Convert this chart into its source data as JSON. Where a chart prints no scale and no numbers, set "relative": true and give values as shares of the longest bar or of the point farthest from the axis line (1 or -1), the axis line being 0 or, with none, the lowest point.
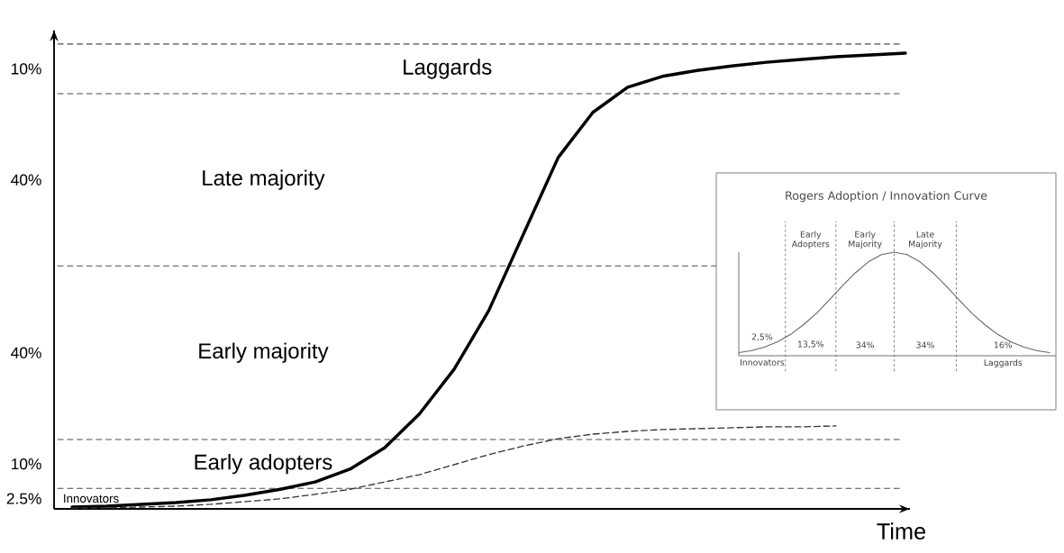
{
  "chart_data": [
    {
      "type": "line",
      "xlabel": "Time",
      "relative": true,
      "tick_labels": false,
      "categories": [
        null,
        null,
        null,
        null,
        null,
        null,
        null,
        null,
        null,
        null,
        null,
        null,
        null,
        null,
        null,
        null,
        null,
        null,
        null,
        null,
        null,
        null,
        null,
        null,
        null
      ],
      "series": [
        {
          "color": "#000000",
          "line_style": "solid",
          "values": [
            0.004,
            0.006,
            0.01,
            0.014,
            0.02,
            0.03,
            0.043,
            0.059,
            0.087,
            0.134,
            0.208,
            0.306,
            0.435,
            0.603,
            0.771,
            0.87,
            0.925,
            0.949,
            0.962,
            0.972,
            0.98,
            0.986,
            0.992,
            0.996,
            1
          ]
        },
        {
          "color": "#333333",
          "line_style": "dashed",
          "values": [
            0.002,
            0.002,
            0.004,
            0.006,
            0.01,
            0.016,
            0.022,
            0.032,
            0.043,
            0.059,
            0.075,
            0.097,
            0.119,
            0.138,
            0.154,
            0.164,
            0.17,
            0.174,
            0.176,
            0.178,
            0.18,
            0.18,
            0.182,
            null,
            null
          ]
        }
      ],
      "ref_lines": [
        {
          "axis": "y",
          "value": 0.045,
          "line_style": "dashed"
        },
        {
          "axis": "y",
          "value": 0.152,
          "line_style": "dashed"
        },
        {
          "axis": "y",
          "value": 0.533,
          "line_style": "dashed"
        },
        {
          "axis": "y",
          "value": 0.911,
          "line_style": "dashed"
        },
        {
          "axis": "y",
          "value": 1.02,
          "line_style": "dashed"
        }
      ],
      "annotations": [
        "Innovators",
        "2.5%",
        "Early adopters",
        "10%",
        "Early majority",
        "40%",
        "Late majority",
        "40%",
        "Laggards",
        "10%"
      ]
    },
    {
      "type": "line",
      "title": "Rogers Adoption / Innovation Curve",
      "relative": true,
      "tick_labels": false,
      "categories": [
        null,
        null,
        null,
        null,
        null,
        null,
        null,
        null,
        null,
        null,
        null,
        null,
        null,
        null,
        null,
        null,
        null,
        null,
        null,
        null,
        null,
        null,
        null,
        null,
        null
      ],
      "series": [
        {
          "color": "#666666",
          "line_style": "solid",
          "values": [
            0.03,
            0.05,
            0.085,
            0.135,
            0.206,
            0.3,
            0.41,
            0.54,
            0.674,
            0.8,
            0.906,
            0.976,
            1,
            0.976,
            0.906,
            0.8,
            0.674,
            0.54,
            0.41,
            0.3,
            0.206,
            0.135,
            0.085,
            0.05,
            0.03
          ]
        }
      ],
      "annotations": [
        "Innovators",
        "2,5%",
        "Early Adopters",
        "13,5%",
        "Early Majority",
        "34%",
        "Late Majority",
        "34%",
        "Laggards",
        "16%"
      ]
    }
  ]
}
